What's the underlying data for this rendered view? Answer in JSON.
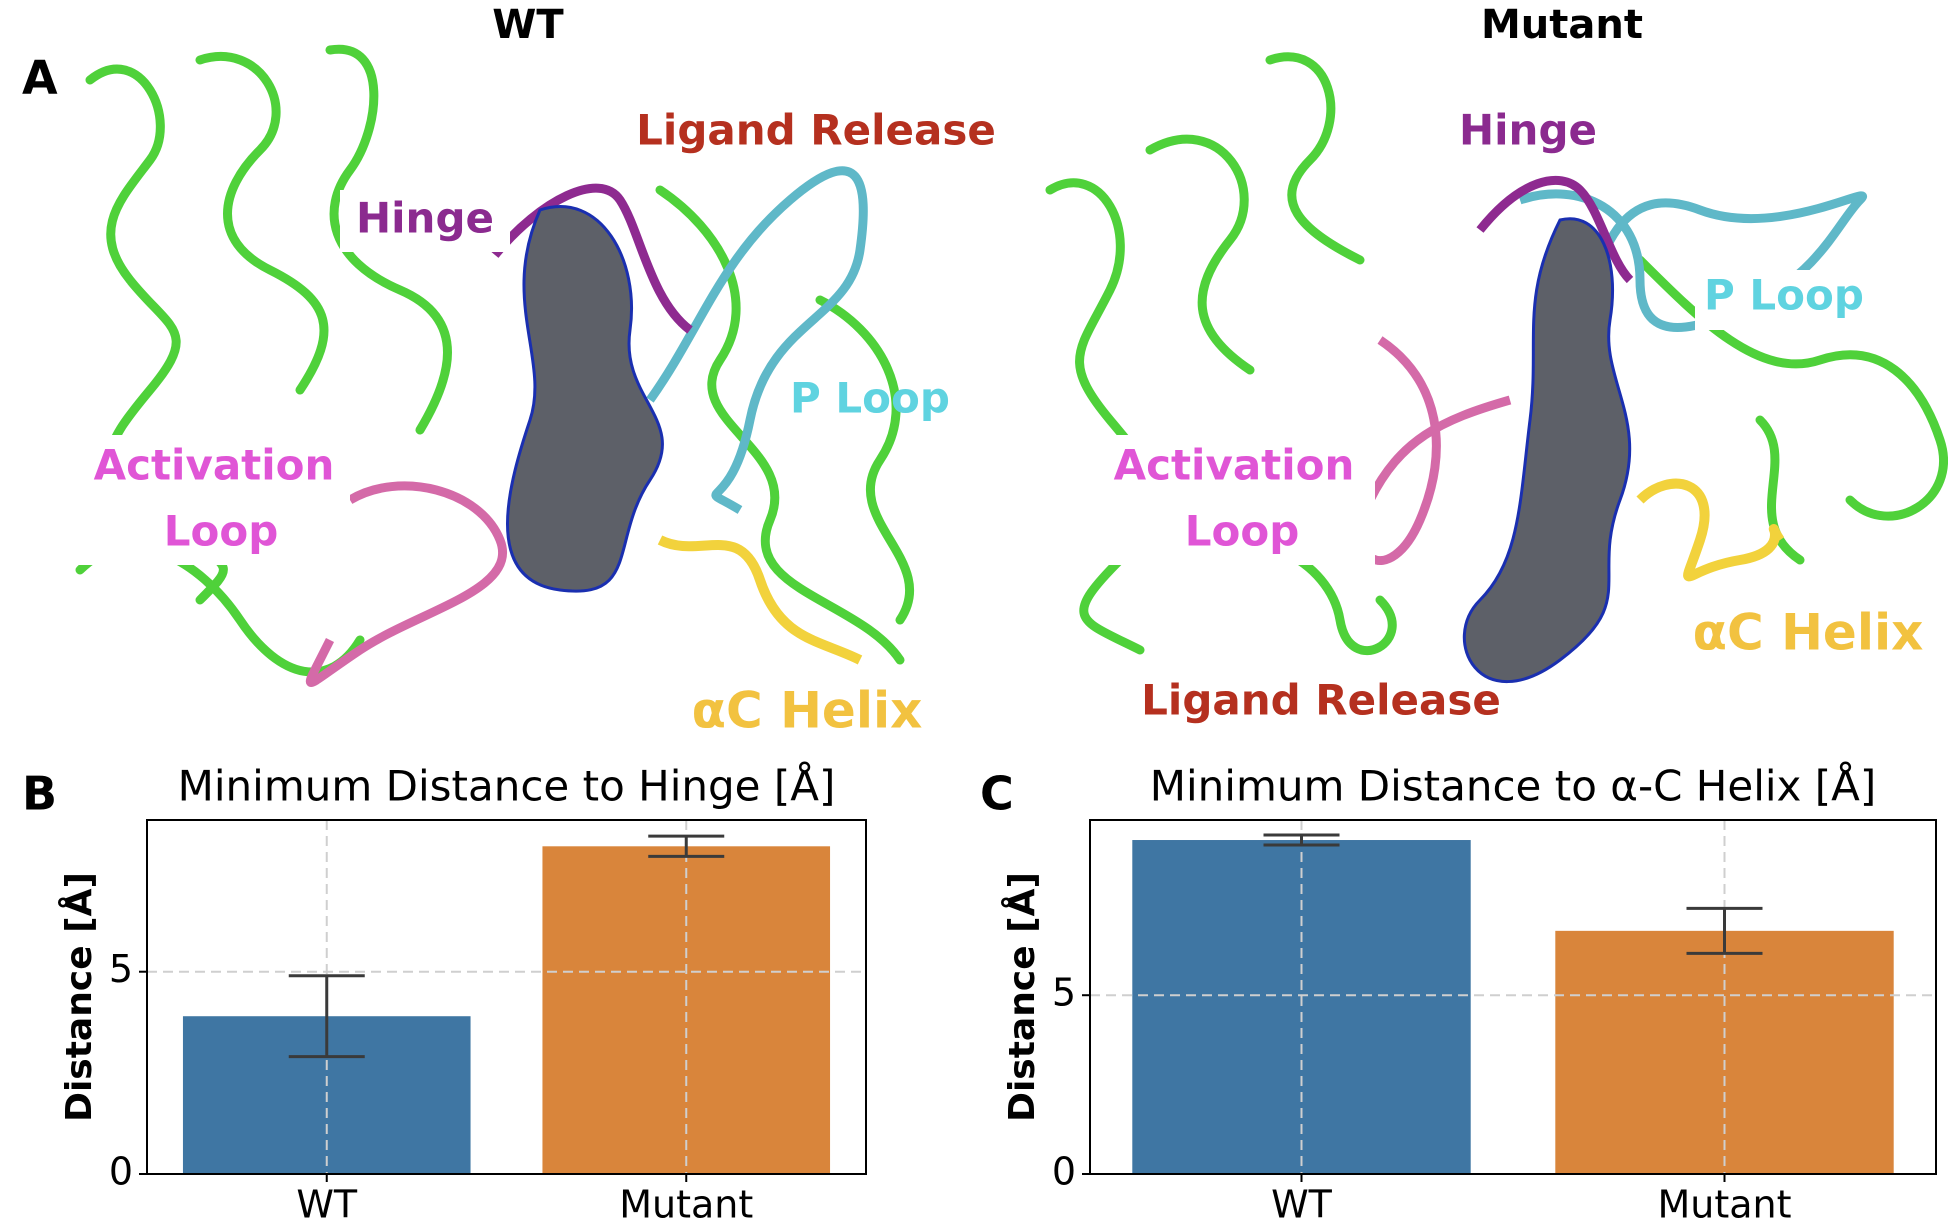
{
  "panels": [
    "A",
    "B",
    "C"
  ],
  "structures": [
    {
      "title": "WT",
      "labels": {
        "ligand_release": "Ligand Release",
        "hinge": "Hinge",
        "p_loop": "P Loop",
        "activation_loop": [
          "Activation",
          "Loop"
        ],
        "ac_helix": "αC Helix"
      }
    },
    {
      "title": "Mutant",
      "labels": {
        "ligand_release": "Ligand Release",
        "hinge": "Hinge",
        "p_loop": "P Loop",
        "activation_loop": [
          "Activation",
          "Loop"
        ],
        "ac_helix": "αC Helix"
      }
    }
  ],
  "chart_data": [
    {
      "type": "bar",
      "title": "Minimum Distance to Hinge [Å]",
      "ylabel": "Distance [Å]",
      "categories": [
        "WT",
        "Mutant"
      ],
      "values": [
        3.9,
        8.1
      ],
      "errors": [
        1.0,
        0.25
      ],
      "colors": [
        "#3f76a3",
        "#d9853b"
      ],
      "ylim": [
        0,
        8.75
      ],
      "yticks": [
        0,
        5
      ],
      "grid": true
    },
    {
      "type": "bar",
      "title": "Minimum Distance to α-C Helix  [Å]",
      "ylabel": "Distance [Å]",
      "categories": [
        "WT",
        "Mutant"
      ],
      "values": [
        9.34,
        6.8
      ],
      "errors": [
        0.14,
        0.63
      ],
      "colors": [
        "#3f76a3",
        "#d9853b"
      ],
      "ylim": [
        0,
        9.9
      ],
      "yticks": [
        0,
        5
      ],
      "grid": true
    }
  ]
}
